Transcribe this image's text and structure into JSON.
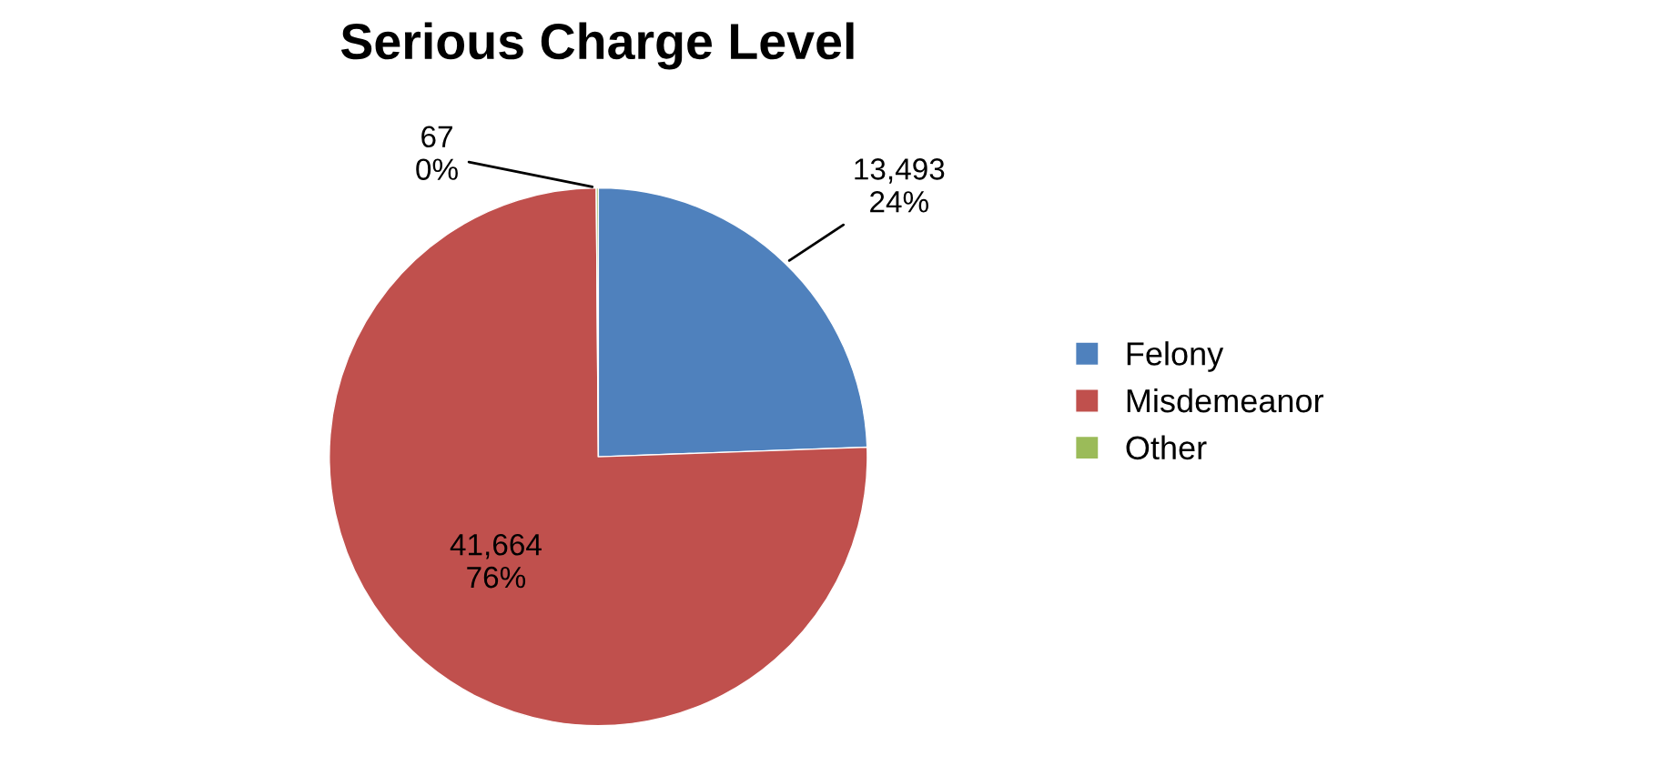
{
  "chart_data": {
    "type": "pie",
    "title": "Serious Charge Level",
    "categories": [
      "Felony",
      "Misdemeanor",
      "Other"
    ],
    "values": [
      13493,
      41664,
      67
    ],
    "colors": [
      "#4f81bd",
      "#c0504d",
      "#9bbb59"
    ],
    "value_labels": [
      "13,493\n24%",
      "41,664\n76%",
      "67\n0%"
    ],
    "legend": "right"
  }
}
